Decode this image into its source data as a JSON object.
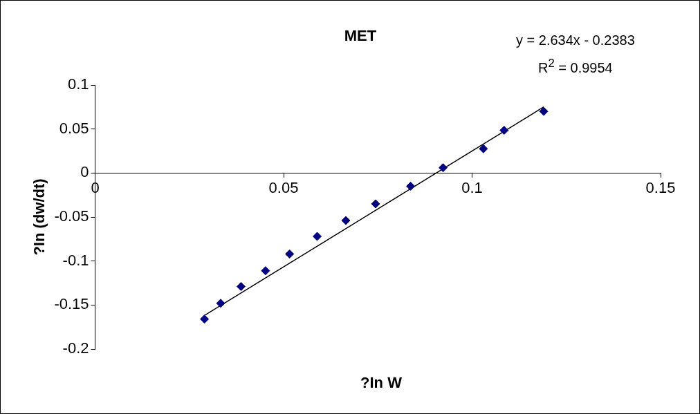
{
  "chart_data": {
    "type": "scatter",
    "title": "MET",
    "xlabel": "?In W",
    "ylabel": "?In (dw/dt)",
    "annotations": [
      "y = 2.634x - 0.2383",
      "R$^{2}$ = 0.9954"
    ],
    "xlim": [
      0,
      0.15
    ],
    "xticks": [
      0,
      0.05,
      0.1,
      0.15
    ],
    "ylim": [
      -0.2,
      0.1
    ],
    "yticks": [
      -0.2,
      -0.15,
      -0.1,
      -0.05,
      0,
      0.05,
      0.1
    ],
    "grid": false,
    "legend": false,
    "marker": "diamond",
    "series": [
      {
        "color": "#000080",
        "x": [
          0.029,
          0.0333,
          0.0387,
          0.0452,
          0.0516,
          0.0589,
          0.0665,
          0.0744,
          0.0837,
          0.0923,
          0.103,
          0.1085,
          0.119
        ],
        "values": [
          -0.166,
          -0.148,
          -0.129,
          -0.111,
          -0.092,
          -0.072,
          -0.054,
          -0.035,
          -0.015,
          0.006,
          0.0275,
          0.0485,
          0.07
        ]
      },
      {
        "type": "line",
        "color": "#000000",
        "marker": "none",
        "x": [
          0.029,
          0.119
        ],
        "values": [
          -0.1619,
          0.0751
        ]
      }
    ]
  }
}
